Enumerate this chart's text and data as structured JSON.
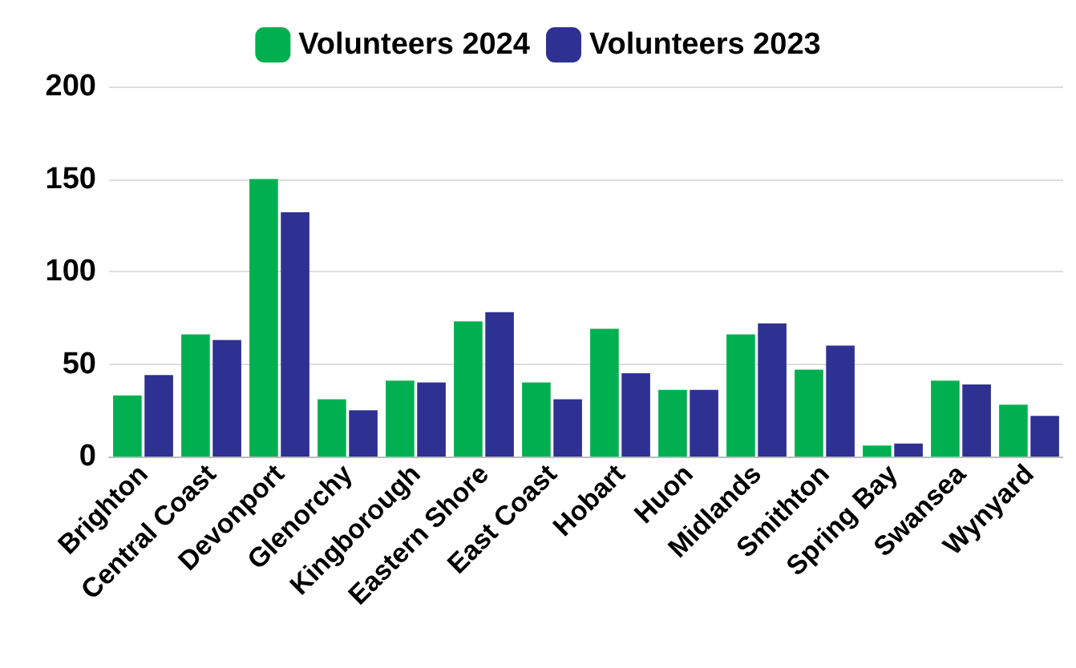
{
  "chart_data": {
    "type": "bar",
    "categories": [
      "Brighton",
      "Central Coast",
      "Devonport",
      "Glenorchy",
      "Kingborough",
      "Eastern Shore",
      "East Coast",
      "Hobart",
      "Huon",
      "Midlands",
      "Smithton",
      "Spring Bay",
      "Swansea",
      "Wynyard"
    ],
    "series": [
      {
        "name": "Volunteers 2024",
        "color": "#00b050",
        "values": [
          33,
          66,
          150,
          31,
          41,
          73,
          40,
          69,
          36,
          66,
          47,
          6,
          41,
          28
        ]
      },
      {
        "name": "Volunteers 2023",
        "color": "#2e3192",
        "values": [
          44,
          63,
          132,
          25,
          40,
          78,
          31,
          45,
          36,
          72,
          60,
          7,
          39,
          22
        ]
      }
    ],
    "ylim": [
      0,
      200
    ],
    "yticks": [
      0,
      50,
      100,
      150,
      200
    ],
    "grid": "y",
    "legend": "top"
  }
}
